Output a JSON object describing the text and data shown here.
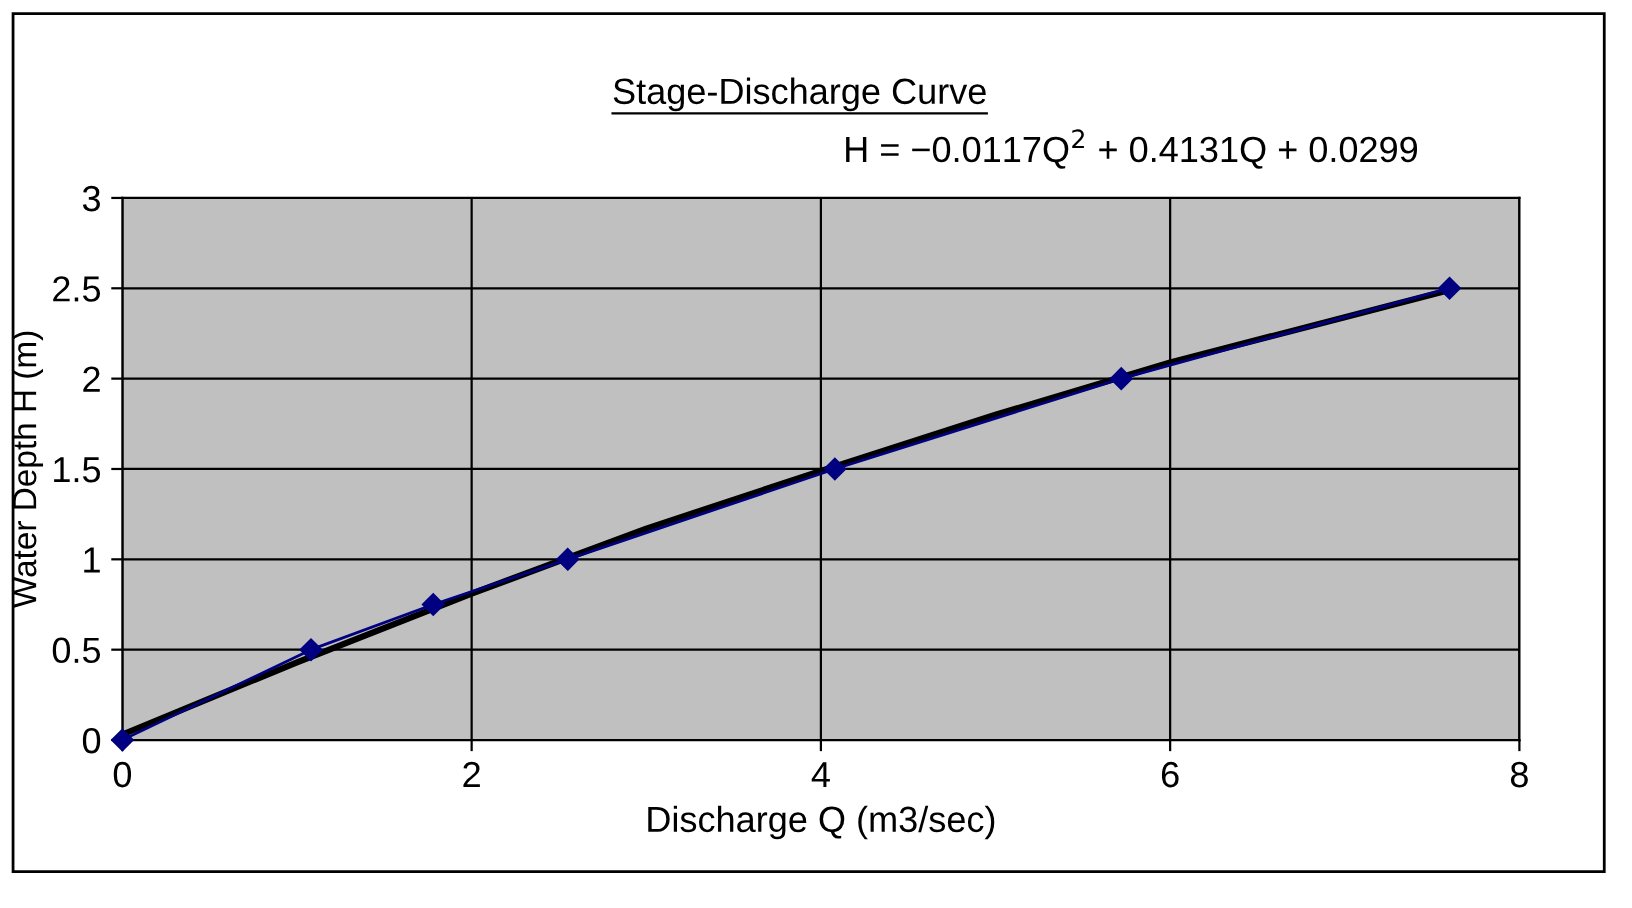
{
  "chart_data": {
    "type": "line",
    "title": "Stage-Discharge Curve",
    "xlabel": "Discharge Q (m3/sec)",
    "ylabel": "Water Depth H (m)",
    "annotations": [
      "H = −0.0117Q$^{2}$ + 0.4131Q + 0.0299"
    ],
    "x": [
      0,
      1.08,
      1.78,
      2.55,
      4.08,
      5.72,
      7.6
    ],
    "series": [
      {
        "marker": "diamond",
        "color": "#000080",
        "values": [
          0,
          0.5,
          0.75,
          1.0,
          1.5,
          2.0,
          2.5
        ]
      },
      {
        "type": "line",
        "marker": "none",
        "color": "#000000",
        "x": [
          0,
          1,
          2,
          3,
          4,
          5,
          6,
          7,
          7.6
        ],
        "values": [
          0.03,
          0.43,
          0.81,
          1.17,
          1.49,
          1.8,
          2.09,
          2.34,
          2.49
        ]
      }
    ],
    "xlim": [
      0,
      8
    ],
    "xticks": [
      0,
      2,
      4,
      6,
      8
    ],
    "ylim": [
      0,
      3
    ],
    "yticks": [
      0,
      0.5,
      1,
      1.5,
      2,
      2.5,
      3
    ],
    "grid": true,
    "legend": false
  }
}
